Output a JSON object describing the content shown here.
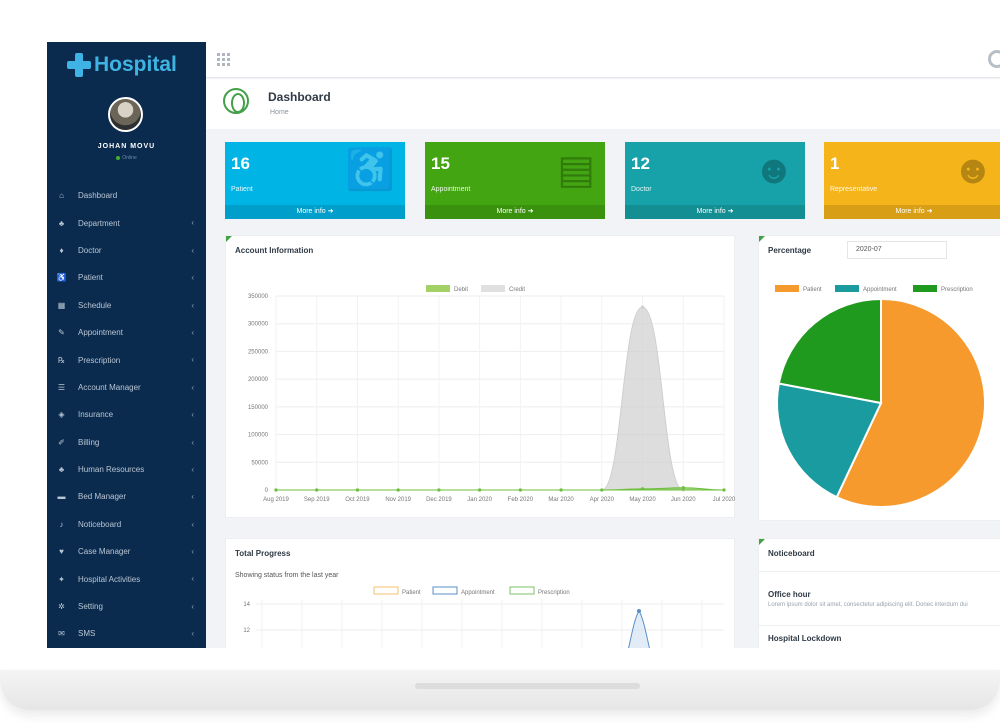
{
  "sidebar": {
    "logo": "Hospital",
    "user_name": "JOHAN MOVU",
    "user_status": "Online",
    "items": [
      {
        "label": "Dashboard",
        "icon": "home-icon",
        "has_children": false
      },
      {
        "label": "Department",
        "icon": "sitemap-icon",
        "has_children": true
      },
      {
        "label": "Doctor",
        "icon": "user-md-icon",
        "has_children": true
      },
      {
        "label": "Patient",
        "icon": "wheelchair-icon",
        "has_children": true
      },
      {
        "label": "Schedule",
        "icon": "calendar-icon",
        "has_children": true
      },
      {
        "label": "Appointment",
        "icon": "edit-icon",
        "has_children": true
      },
      {
        "label": "Prescription",
        "icon": "prescription-icon",
        "has_children": true
      },
      {
        "label": "Account Manager",
        "icon": "list-icon",
        "has_children": true
      },
      {
        "label": "Insurance",
        "icon": "shield-icon",
        "has_children": true
      },
      {
        "label": "Billing",
        "icon": "pencil-icon",
        "has_children": true
      },
      {
        "label": "Human Resources",
        "icon": "users-icon",
        "has_children": true
      },
      {
        "label": "Bed Manager",
        "icon": "bed-icon",
        "has_children": true
      },
      {
        "label": "Noticeboard",
        "icon": "bell-icon",
        "has_children": true
      },
      {
        "label": "Case Manager",
        "icon": "heartbeat-icon",
        "has_children": true
      },
      {
        "label": "Hospital Activities",
        "icon": "activity-icon",
        "has_children": true
      },
      {
        "label": "Setting",
        "icon": "gear-icon",
        "has_children": true
      },
      {
        "label": "SMS",
        "icon": "chat-icon",
        "has_children": true
      }
    ]
  },
  "header": {
    "title": "Dashboard",
    "breadcrumb": "Home"
  },
  "stats": [
    {
      "value": "16",
      "label": "Patient",
      "more": "More info",
      "color": "#00b4e6",
      "icon": "wheelchair-icon"
    },
    {
      "value": "15",
      "label": "Appointment",
      "more": "More info",
      "color": "#43a511",
      "icon": "list-alt-icon"
    },
    {
      "value": "12",
      "label": "Doctor",
      "more": "More info",
      "color": "#16a2a8",
      "icon": "doctor-icon"
    },
    {
      "value": "1",
      "label": "Representative",
      "more": "More info",
      "color": "#f5b41a",
      "icon": "user-icon"
    }
  ],
  "account_panel": {
    "title": "Account Information"
  },
  "percentage_panel": {
    "title": "Percentage",
    "date": "2020-07"
  },
  "progress_panel": {
    "title": "Total Progress",
    "subtitle": "Showing status from the last year"
  },
  "notice_panel": {
    "title": "Noticeboard",
    "items": [
      {
        "title": "Office hour",
        "text": "Lorem ipsum dolor sit amet, consectetur adipiscing elit. Donec interdum dui"
      },
      {
        "title": "Hospital Lockdown",
        "text": ""
      }
    ]
  },
  "chart_data": [
    {
      "type": "area",
      "legend": [
        "Debit",
        "Credit"
      ],
      "legend_position": "top",
      "categories": [
        "Aug 2019",
        "Sep 2019",
        "Oct 2019",
        "Nov 2019",
        "Dec 2019",
        "Jan 2020",
        "Feb 2020",
        "Mar 2020",
        "Apr 2020",
        "May 2020",
        "Jun 2020",
        "Jul 2020"
      ],
      "series": [
        {
          "name": "Debit",
          "values": [
            0,
            0,
            0,
            0,
            0,
            0,
            0,
            0,
            0,
            2000,
            4000,
            0
          ],
          "color": "#8cc63f"
        },
        {
          "name": "Credit",
          "values": [
            0,
            0,
            0,
            0,
            0,
            0,
            0,
            0,
            0,
            330000,
            0,
            0
          ],
          "color": "#d8d8d8"
        }
      ],
      "yticks": [
        0,
        50000,
        100000,
        150000,
        200000,
        250000,
        300000,
        350000
      ],
      "ylim": [
        0,
        350000
      ],
      "grid": true
    },
    {
      "type": "pie",
      "legend": [
        "Patient",
        "Appointment",
        "Prescription"
      ],
      "legend_position": "top",
      "values": [
        57,
        21,
        22
      ],
      "colors": [
        "#f79a2e",
        "#1a9ba0",
        "#1f9a1f"
      ]
    },
    {
      "type": "line",
      "legend": [
        "Patient",
        "Appointment",
        "Prescription"
      ],
      "legend_position": "top",
      "colors": [
        "#f5c16c",
        "#5a8fc9",
        "#7cc36a"
      ],
      "yticks": [
        12,
        14
      ],
      "grid": true
    }
  ]
}
